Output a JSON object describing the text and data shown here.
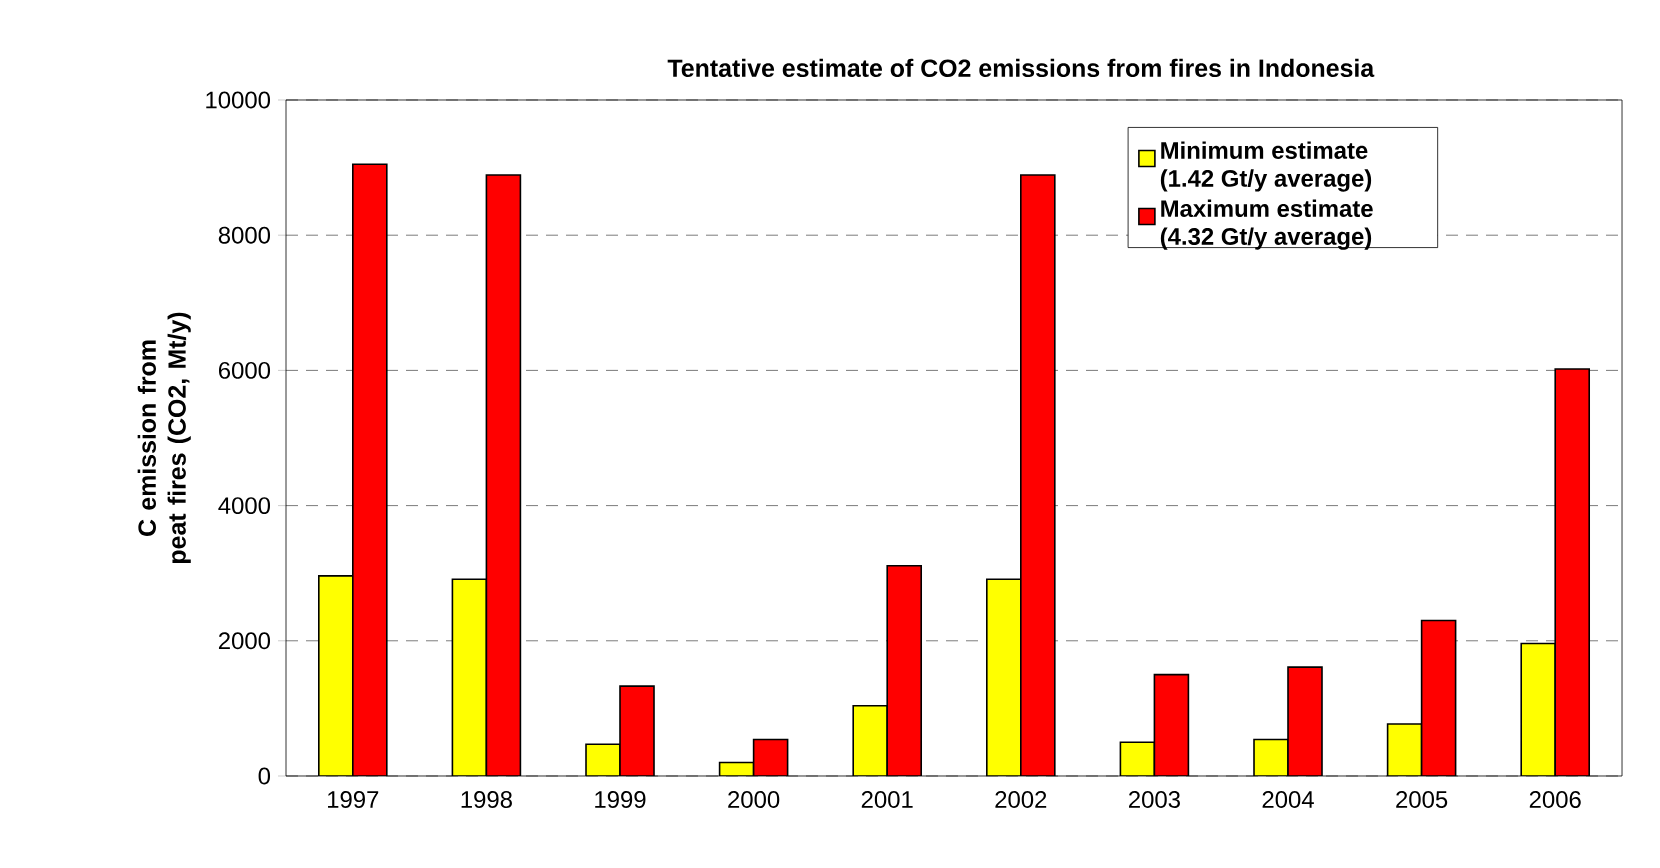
{
  "chart_data": {
    "type": "bar",
    "title": "Tentative estimate of CO2 emissions from fires in Indonesia",
    "ylabel": "C emission from peat fires (CO2, Mt/y)",
    "categories": [
      "1997",
      "1998",
      "1999",
      "2000",
      "2001",
      "2002",
      "2003",
      "2004",
      "2005",
      "2006"
    ],
    "series": [
      {
        "name": "Minimum estimate (1.42 Gt/y average)",
        "color": "#ffff00",
        "values": [
          2960,
          2910,
          470,
          200,
          1040,
          2910,
          500,
          540,
          770,
          1960
        ]
      },
      {
        "name": "Maximum estimate (4.32 Gt/y average)",
        "color": "#ff0000",
        "values": [
          9050,
          8890,
          1330,
          540,
          3110,
          8890,
          1500,
          1610,
          2300,
          6020
        ]
      }
    ],
    "ylim": [
      0,
      10000
    ],
    "yticks": [
      0,
      2000,
      4000,
      6000,
      8000,
      10000
    ],
    "grid": "y",
    "legend": "top right"
  }
}
